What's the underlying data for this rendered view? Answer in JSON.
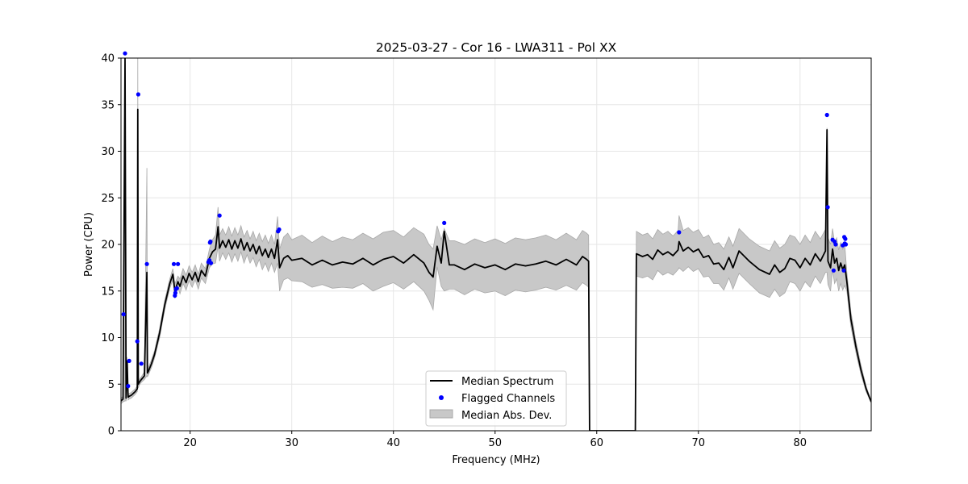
{
  "chart_data": {
    "type": "line",
    "title": "2025-03-27 - Cor 16 - LWA311 - Pol XX",
    "xlabel": "Frequency (MHz)",
    "ylabel": "Power (CPU)",
    "xlim": [
      13.2,
      87.0
    ],
    "ylim": [
      0,
      40
    ],
    "xticks": [
      20,
      30,
      40,
      50,
      60,
      70,
      80
    ],
    "yticks": [
      0,
      5,
      10,
      15,
      20,
      25,
      30,
      35,
      40
    ],
    "grid": true,
    "legend_position": "lower-center",
    "colors": {
      "median": "#000000",
      "flagged": "#0000ff",
      "mad_fill": "#c8c8c8",
      "mad_edge": "#a8a8a8",
      "grid": "#e6e6e6"
    },
    "series": [
      {
        "name": "Median Spectrum",
        "kind": "line",
        "x": [
          13.2,
          13.4,
          13.6,
          13.7,
          13.8,
          13.9,
          14.0,
          14.2,
          14.4,
          14.6,
          14.8,
          14.85,
          14.9,
          15.0,
          15.2,
          15.5,
          15.75,
          15.8,
          15.9,
          16.2,
          16.5,
          17.0,
          17.5,
          18.0,
          18.3,
          18.5,
          18.8,
          19.0,
          19.3,
          19.6,
          19.9,
          20.2,
          20.5,
          20.8,
          21.1,
          21.5,
          21.9,
          22.2,
          22.5,
          22.75,
          22.9,
          23.2,
          23.5,
          23.8,
          24.1,
          24.4,
          24.7,
          25.0,
          25.3,
          25.6,
          25.9,
          26.2,
          26.5,
          26.8,
          27.1,
          27.4,
          27.7,
          28.0,
          28.3,
          28.6,
          28.8,
          29.2,
          29.6,
          30.0,
          31.0,
          32.0,
          33.0,
          34.0,
          35.0,
          36.0,
          37.0,
          38.0,
          39.0,
          40.0,
          41.0,
          42.0,
          43.0,
          43.5,
          43.9,
          44.3,
          44.7,
          45.0,
          45.5,
          46.0,
          47.0,
          48.0,
          49.0,
          50.0,
          51.0,
          52.0,
          53.0,
          54.0,
          55.0,
          56.0,
          57.0,
          58.0,
          58.6,
          59.0,
          59.2,
          59.3,
          63.8,
          63.9,
          64.5,
          65.0,
          65.5,
          66.0,
          66.5,
          67.0,
          67.5,
          68.0,
          68.1,
          68.5,
          69.0,
          69.5,
          70.0,
          70.5,
          71.0,
          71.5,
          72.0,
          72.5,
          73.0,
          73.4,
          74.0,
          75.0,
          76.0,
          77.0,
          77.5,
          78.0,
          78.5,
          79.0,
          79.5,
          80.0,
          80.5,
          81.0,
          81.5,
          82.0,
          82.5,
          82.65,
          82.75,
          83.0,
          83.2,
          83.4,
          83.6,
          83.8,
          84.0,
          84.2,
          84.4,
          84.6,
          85.0,
          85.5,
          86.0,
          86.5,
          87.0
        ],
        "y": [
          3.2,
          3.4,
          40,
          3.5,
          7.5,
          3.6,
          3.7,
          3.8,
          4.0,
          4.2,
          4.5,
          34.5,
          5.0,
          5.2,
          5.5,
          5.9,
          17.0,
          6.2,
          6.4,
          7.2,
          8.2,
          10.5,
          13.5,
          15.8,
          16.8,
          15.0,
          16.0,
          15.5,
          16.6,
          15.9,
          16.9,
          16.2,
          17.0,
          16.0,
          17.2,
          16.6,
          18.5,
          19.2,
          19.5,
          21.9,
          19.6,
          20.4,
          19.7,
          20.5,
          19.5,
          20.4,
          19.6,
          20.6,
          19.4,
          20.2,
          19.3,
          20.0,
          19.0,
          19.8,
          18.8,
          19.5,
          18.6,
          19.5,
          18.5,
          20.5,
          17.5,
          18.5,
          18.8,
          18.3,
          18.5,
          17.8,
          18.3,
          17.8,
          18.1,
          17.9,
          18.5,
          17.8,
          18.4,
          18.7,
          18.0,
          18.9,
          18.0,
          17.0,
          16.5,
          19.8,
          18.0,
          21.4,
          17.8,
          17.8,
          17.3,
          17.9,
          17.5,
          17.8,
          17.3,
          17.9,
          17.7,
          17.9,
          18.2,
          17.8,
          18.4,
          17.8,
          18.7,
          18.4,
          18.2,
          0,
          0,
          19.0,
          18.7,
          18.9,
          18.4,
          19.4,
          18.9,
          19.2,
          18.8,
          19.4,
          20.3,
          19.3,
          19.7,
          19.2,
          19.5,
          18.6,
          18.8,
          17.9,
          18.0,
          17.3,
          18.6,
          17.5,
          19.3,
          18.2,
          17.3,
          16.8,
          17.8,
          17.0,
          17.4,
          18.5,
          18.3,
          17.5,
          18.5,
          17.8,
          19.0,
          18.2,
          19.3,
          32.3,
          18.2,
          17.5,
          19.5,
          18.0,
          18.5,
          17.2,
          18.0,
          17.3,
          17.8,
          16.0,
          12.0,
          9.0,
          6.5,
          4.5,
          3.1
        ]
      },
      {
        "name": "Flagged Channels",
        "kind": "scatter",
        "x": [
          13.45,
          13.6,
          13.9,
          14.0,
          14.8,
          14.9,
          15.2,
          15.75,
          18.4,
          18.5,
          18.55,
          18.6,
          18.7,
          18.8,
          21.8,
          21.9,
          21.95,
          22.0,
          22.05,
          22.9,
          28.65,
          28.75,
          45.0,
          68.1,
          82.65,
          82.72,
          83.2,
          83.3,
          83.4,
          83.5,
          84.2,
          84.3,
          84.35,
          84.4,
          84.45,
          84.5
        ],
        "y": [
          12.5,
          40.5,
          4.8,
          7.5,
          9.6,
          36.1,
          7.2,
          17.9,
          17.9,
          14.5,
          14.8,
          15.2,
          15.3,
          17.9,
          18.1,
          18.3,
          20.2,
          20.3,
          18.0,
          23.1,
          21.4,
          21.6,
          22.3,
          21.3,
          33.9,
          24.0,
          20.5,
          17.2,
          20.3,
          20.0,
          19.9,
          17.2,
          20.8,
          20.1,
          20.6,
          20.0
        ]
      },
      {
        "name": "Median Abs. Dev.",
        "kind": "band",
        "x": [
          13.2,
          13.4,
          13.6,
          13.7,
          13.8,
          13.9,
          14.0,
          14.2,
          14.4,
          14.6,
          14.8,
          14.85,
          14.9,
          15.0,
          15.2,
          15.5,
          15.75,
          15.8,
          15.9,
          16.2,
          16.5,
          17.0,
          17.5,
          18.0,
          18.3,
          18.5,
          18.8,
          19.0,
          19.3,
          19.6,
          19.9,
          20.2,
          20.5,
          20.8,
          21.1,
          21.5,
          21.9,
          22.2,
          22.5,
          22.75,
          22.9,
          23.2,
          23.5,
          23.8,
          24.1,
          24.4,
          24.7,
          25.0,
          25.3,
          25.6,
          25.9,
          26.2,
          26.5,
          26.8,
          27.1,
          27.4,
          27.7,
          28.0,
          28.3,
          28.6,
          28.8,
          29.2,
          29.6,
          30.0,
          31.0,
          32.0,
          33.0,
          34.0,
          35.0,
          36.0,
          37.0,
          38.0,
          39.0,
          40.0,
          41.0,
          42.0,
          43.0,
          43.5,
          43.9,
          44.3,
          44.7,
          45.0,
          45.5,
          46.0,
          47.0,
          48.0,
          49.0,
          50.0,
          51.0,
          52.0,
          53.0,
          54.0,
          55.0,
          56.0,
          57.0,
          58.0,
          58.6,
          59.0,
          59.2,
          59.3,
          63.8,
          63.9,
          64.5,
          65.0,
          65.5,
          66.0,
          66.5,
          67.0,
          67.5,
          68.0,
          68.1,
          68.5,
          69.0,
          69.5,
          70.0,
          70.5,
          71.0,
          71.5,
          72.0,
          72.5,
          73.0,
          73.4,
          74.0,
          75.0,
          76.0,
          77.0,
          77.5,
          78.0,
          78.5,
          79.0,
          79.5,
          80.0,
          80.5,
          81.0,
          81.5,
          82.0,
          82.5,
          82.65,
          82.75,
          83.0,
          83.2,
          83.4,
          83.6,
          83.8,
          84.0,
          84.2,
          84.4,
          84.6,
          85.0,
          85.5,
          86.0,
          86.5,
          87.0
        ],
        "upper": [
          3.5,
          3.7,
          40,
          3.8,
          7.9,
          3.9,
          4.0,
          4.1,
          4.3,
          4.5,
          4.8,
          40,
          5.4,
          5.5,
          5.8,
          6.3,
          28.2,
          6.6,
          6.8,
          7.6,
          8.6,
          11.0,
          14.0,
          16.3,
          17.4,
          15.8,
          16.6,
          16.3,
          17.4,
          16.7,
          17.7,
          17.0,
          17.8,
          16.8,
          18.0,
          17.4,
          19.5,
          20.5,
          21.0,
          24.0,
          21.0,
          21.7,
          21.0,
          21.9,
          20.9,
          21.8,
          21.0,
          22.0,
          20.8,
          21.5,
          20.6,
          21.4,
          20.4,
          21.2,
          20.3,
          21.0,
          20.1,
          21.0,
          20.0,
          23.0,
          19.5,
          20.8,
          21.2,
          20.5,
          21.0,
          20.2,
          20.9,
          20.3,
          20.8,
          20.5,
          21.2,
          20.6,
          21.3,
          21.5,
          20.8,
          21.8,
          21.1,
          20.0,
          19.5,
          22.0,
          20.5,
          21.7,
          20.4,
          20.4,
          20.0,
          20.6,
          20.2,
          20.6,
          20.1,
          20.7,
          20.5,
          20.7,
          21.0,
          20.5,
          21.2,
          20.5,
          21.5,
          21.2,
          21.0,
          0,
          0,
          21.4,
          21.0,
          21.2,
          20.6,
          21.6,
          21.1,
          21.4,
          20.9,
          21.5,
          23.1,
          21.5,
          21.8,
          21.3,
          21.6,
          20.7,
          21.0,
          20.0,
          20.2,
          19.5,
          20.8,
          19.8,
          21.7,
          20.6,
          19.8,
          19.3,
          20.4,
          19.6,
          20.0,
          21.0,
          20.8,
          20.0,
          21.0,
          20.2,
          21.4,
          20.6,
          21.6,
          32.5,
          20.7,
          20.0,
          21.7,
          20.2,
          20.7,
          19.4,
          20.2,
          19.5,
          20.0,
          17.0,
          12.8,
          9.6,
          7.0,
          4.8,
          3.2
        ],
        "lower": [
          2.9,
          3.1,
          3.2,
          3.2,
          7.1,
          3.3,
          3.4,
          3.5,
          3.7,
          3.9,
          4.2,
          26.0,
          4.6,
          4.9,
          5.2,
          5.5,
          5.9,
          5.8,
          6.0,
          6.8,
          7.8,
          10.0,
          13.0,
          15.3,
          16.2,
          14.2,
          15.4,
          14.7,
          15.8,
          15.1,
          16.1,
          15.4,
          16.2,
          15.2,
          16.4,
          15.8,
          17.5,
          17.9,
          18.0,
          19.8,
          18.2,
          19.1,
          18.4,
          19.1,
          18.1,
          19.0,
          18.2,
          19.2,
          18.0,
          18.9,
          18.0,
          18.6,
          17.6,
          18.4,
          17.3,
          18.0,
          17.1,
          18.0,
          17.0,
          18.0,
          15.0,
          16.2,
          16.4,
          16.1,
          16.0,
          15.4,
          15.7,
          15.3,
          15.4,
          15.3,
          15.8,
          15.0,
          15.5,
          15.9,
          15.2,
          16.0,
          15.0,
          14.0,
          13.0,
          17.6,
          15.5,
          15.0,
          15.2,
          15.2,
          14.6,
          15.2,
          14.8,
          15.0,
          14.5,
          15.1,
          14.9,
          15.1,
          15.4,
          15.1,
          15.6,
          15.1,
          15.9,
          15.6,
          15.4,
          0,
          0,
          16.6,
          16.4,
          16.6,
          16.2,
          17.2,
          16.7,
          17.0,
          16.7,
          17.3,
          17.5,
          17.1,
          17.6,
          17.1,
          17.4,
          16.5,
          16.6,
          15.8,
          15.8,
          15.1,
          16.4,
          15.2,
          16.9,
          15.8,
          14.8,
          14.3,
          15.2,
          14.4,
          14.8,
          16.0,
          15.8,
          15.0,
          16.0,
          15.4,
          16.6,
          15.8,
          17.0,
          17.0,
          15.7,
          15.0,
          17.3,
          15.8,
          16.3,
          15.0,
          15.8,
          15.1,
          15.6,
          15.0,
          11.2,
          8.4,
          6.0,
          4.2,
          3.0
        ]
      }
    ]
  }
}
